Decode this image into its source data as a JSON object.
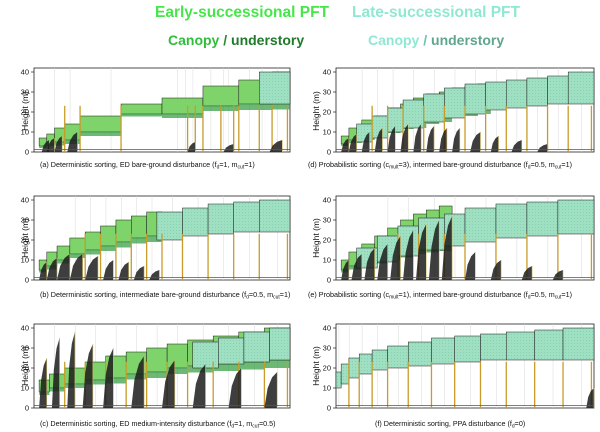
{
  "legend": {
    "early_title": "Early-successional PFT",
    "late_title": "Late-successional PFT",
    "early_canopy": "Canopy",
    "early_sep": " / ",
    "early_understory": "understory",
    "late_canopy": "Canopy",
    "late_sep": " / ",
    "late_understory": "understory",
    "colors": {
      "early_canopy": "#7fd36b",
      "early_understory": "#2e9a3a",
      "late_canopy": "#9fe0c3",
      "late_understory": "#5aa58a",
      "stem": "#c89b2a"
    }
  },
  "ylabel": "Height (m)",
  "chart_data": [
    {
      "id": "a",
      "type": "area",
      "caption": {
        "pre": "(a) Deterministic sorting, ED bare-ground disturbance (f",
        "s1": "d",
        "mid": "=1, m",
        "s2": "cut",
        "post": "=1)"
      },
      "yticks": [
        0,
        10,
        20,
        30,
        40
      ],
      "ylim": [
        0,
        42
      ],
      "xlim": [
        0,
        1
      ],
      "early": [
        [
          0.02,
          0.05,
          3,
          7
        ],
        [
          0.05,
          0.08,
          4,
          9
        ],
        [
          0.08,
          0.12,
          5,
          12
        ],
        [
          0.12,
          0.18,
          6,
          14
        ],
        [
          0.18,
          0.34,
          10,
          18
        ],
        [
          0.34,
          0.5,
          19,
          24
        ],
        [
          0.5,
          0.66,
          19,
          27
        ],
        [
          0.66,
          0.8,
          23,
          33
        ],
        [
          0.8,
          0.93,
          24,
          36
        ],
        [
          0.93,
          1.0,
          25,
          40
        ]
      ],
      "late": [
        [
          0.88,
          1.0,
          24,
          40
        ]
      ],
      "stems": [
        0.12,
        0.18,
        0.34,
        0.6,
        0.63,
        0.66,
        0.73,
        0.78,
        0.8,
        0.88,
        0.93,
        0.99
      ],
      "spikes": [
        [
          0.03,
          0.06,
          6
        ],
        [
          0.05,
          0.08,
          7
        ],
        [
          0.08,
          0.11,
          8
        ],
        [
          0.13,
          0.17,
          10
        ],
        [
          0.6,
          0.63,
          5
        ],
        [
          0.74,
          0.78,
          4
        ],
        [
          0.92,
          0.97,
          6
        ]
      ]
    },
    {
      "id": "d",
      "type": "area",
      "caption": {
        "pre": "(d) Probabilistic sorting (c",
        "s1": "mult",
        "mid": "=3), intermed bare-ground disturbance (f",
        "s2": "d",
        "post": "=0.5, m",
        "s3": "cut",
        "post2": "=1)"
      },
      "yticks": [
        0,
        10,
        20,
        30,
        40
      ],
      "ylim": [
        0,
        42
      ],
      "xlim": [
        0,
        1
      ],
      "early": [
        [
          0.02,
          0.05,
          4,
          8
        ],
        [
          0.05,
          0.1,
          6,
          12
        ],
        [
          0.1,
          0.15,
          8,
          16
        ],
        [
          0.15,
          0.2,
          10,
          18
        ],
        [
          0.2,
          0.25,
          12,
          22
        ],
        [
          0.25,
          0.3,
          14,
          24
        ],
        [
          0.3,
          0.35,
          15,
          27
        ],
        [
          0.35,
          0.4,
          17,
          29
        ],
        [
          0.4,
          0.45,
          18,
          30
        ],
        [
          0.45,
          0.5,
          20,
          32
        ],
        [
          0.5,
          0.55,
          21,
          33
        ],
        [
          0.55,
          0.6,
          22,
          34
        ]
      ],
      "late": [
        [
          0.08,
          0.14,
          5,
          14
        ],
        [
          0.14,
          0.2,
          7,
          18
        ],
        [
          0.2,
          0.26,
          10,
          22
        ],
        [
          0.26,
          0.34,
          12,
          26
        ],
        [
          0.34,
          0.42,
          15,
          29
        ],
        [
          0.42,
          0.5,
          17,
          32
        ],
        [
          0.5,
          0.58,
          19,
          34
        ],
        [
          0.58,
          0.66,
          21,
          35
        ],
        [
          0.66,
          0.74,
          22,
          36
        ],
        [
          0.74,
          0.82,
          23,
          37
        ],
        [
          0.82,
          0.9,
          24,
          38
        ],
        [
          0.9,
          1.0,
          24,
          40
        ]
      ],
      "stems": [
        0.14,
        0.2,
        0.26,
        0.34,
        0.42,
        0.5,
        0.58,
        0.66,
        0.74,
        0.82,
        0.9,
        0.99
      ],
      "spikes": [
        [
          0.02,
          0.05,
          7
        ],
        [
          0.05,
          0.08,
          9
        ],
        [
          0.1,
          0.13,
          10
        ],
        [
          0.15,
          0.18,
          12
        ],
        [
          0.2,
          0.23,
          13
        ],
        [
          0.25,
          0.28,
          14
        ],
        [
          0.3,
          0.33,
          14
        ],
        [
          0.35,
          0.38,
          13
        ],
        [
          0.4,
          0.43,
          12
        ],
        [
          0.45,
          0.48,
          12
        ],
        [
          0.52,
          0.56,
          10
        ],
        [
          0.6,
          0.63,
          8
        ],
        [
          0.68,
          0.72,
          6
        ],
        [
          0.78,
          0.82,
          4
        ]
      ]
    },
    {
      "id": "b",
      "type": "area",
      "caption": {
        "pre": "(b) Deterministic sorting, intermediate bare-ground disturbance (f",
        "s1": "d",
        "mid": "=0.5, m",
        "s2": "cut",
        "post": "=1)"
      },
      "yticks": [
        0,
        10,
        20,
        30,
        40
      ],
      "ylim": [
        0,
        42
      ],
      "xlim": [
        0,
        1
      ],
      "early": [
        [
          0.02,
          0.05,
          5,
          10
        ],
        [
          0.05,
          0.09,
          7,
          14
        ],
        [
          0.09,
          0.14,
          10,
          17
        ],
        [
          0.14,
          0.2,
          13,
          21
        ],
        [
          0.2,
          0.26,
          15,
          24
        ],
        [
          0.26,
          0.32,
          17,
          27
        ],
        [
          0.32,
          0.38,
          19,
          30
        ],
        [
          0.38,
          0.44,
          21,
          32
        ],
        [
          0.44,
          0.5,
          22,
          34
        ]
      ],
      "late": [
        [
          0.48,
          0.58,
          20,
          34
        ],
        [
          0.58,
          0.68,
          22,
          36
        ],
        [
          0.68,
          0.78,
          23,
          38
        ],
        [
          0.78,
          0.88,
          24,
          39
        ],
        [
          0.88,
          1.0,
          24,
          40
        ]
      ],
      "stems": [
        0.2,
        0.26,
        0.32,
        0.38,
        0.44,
        0.5,
        0.58,
        0.68,
        0.78,
        0.88,
        0.99
      ],
      "spikes": [
        [
          0.02,
          0.05,
          9
        ],
        [
          0.05,
          0.09,
          11
        ],
        [
          0.09,
          0.14,
          13
        ],
        [
          0.14,
          0.19,
          13
        ],
        [
          0.2,
          0.25,
          12
        ],
        [
          0.27,
          0.31,
          10
        ],
        [
          0.33,
          0.37,
          9
        ],
        [
          0.39,
          0.43,
          7
        ],
        [
          0.45,
          0.49,
          5
        ]
      ]
    },
    {
      "id": "e",
      "type": "area",
      "caption": {
        "pre": "(e) Probabilistic sorting (c",
        "s1": "mult",
        "mid": "=1), intermed bare-ground disturbance (f",
        "s2": "d",
        "post": "=0.5, m",
        "s3": "cut",
        "post2": "=1)"
      },
      "yticks": [
        0,
        10,
        20,
        30,
        40
      ],
      "ylim": [
        0,
        42
      ],
      "xlim": [
        0,
        1
      ],
      "early": [
        [
          0.02,
          0.05,
          5,
          10
        ],
        [
          0.05,
          0.1,
          7,
          14
        ],
        [
          0.1,
          0.15,
          9,
          18
        ],
        [
          0.15,
          0.2,
          11,
          22
        ],
        [
          0.2,
          0.25,
          13,
          26
        ],
        [
          0.25,
          0.3,
          15,
          30
        ],
        [
          0.3,
          0.35,
          17,
          33
        ],
        [
          0.35,
          0.4,
          18,
          35
        ],
        [
          0.4,
          0.45,
          19,
          37
        ]
      ],
      "late": [
        [
          0.08,
          0.16,
          6,
          16
        ],
        [
          0.16,
          0.24,
          9,
          22
        ],
        [
          0.24,
          0.32,
          12,
          27
        ],
        [
          0.32,
          0.42,
          15,
          31
        ],
        [
          0.42,
          0.5,
          17,
          33
        ],
        [
          0.5,
          0.62,
          19,
          36
        ],
        [
          0.62,
          0.74,
          21,
          38
        ],
        [
          0.74,
          0.86,
          22,
          39
        ],
        [
          0.86,
          1.0,
          23,
          40
        ]
      ],
      "stems": [
        0.24,
        0.32,
        0.42,
        0.5,
        0.62,
        0.74,
        0.86,
        0.99
      ],
      "spikes": [
        [
          0.02,
          0.05,
          10
        ],
        [
          0.06,
          0.1,
          13
        ],
        [
          0.11,
          0.15,
          16
        ],
        [
          0.16,
          0.2,
          18
        ],
        [
          0.21,
          0.25,
          22
        ],
        [
          0.26,
          0.3,
          25
        ],
        [
          0.31,
          0.35,
          28
        ],
        [
          0.36,
          0.4,
          30
        ],
        [
          0.41,
          0.45,
          32
        ],
        [
          0.5,
          0.54,
          14
        ],
        [
          0.6,
          0.64,
          10
        ],
        [
          0.72,
          0.76,
          7
        ],
        [
          0.84,
          0.88,
          5
        ]
      ]
    },
    {
      "id": "c",
      "type": "area",
      "caption": {
        "pre": "(c) Deterministic sorting, ED medium-intensity disturbance (f",
        "s1": "d",
        "mid": "=1, m",
        "s2": "cut",
        "post": "=0.5)"
      },
      "yticks": [
        0,
        10,
        20,
        30,
        40
      ],
      "ylim": [
        0,
        42
      ],
      "xlim": [
        0,
        1
      ],
      "early": [
        [
          0.02,
          0.06,
          8,
          14
        ],
        [
          0.06,
          0.12,
          10,
          17
        ],
        [
          0.12,
          0.2,
          12,
          20
        ],
        [
          0.2,
          0.28,
          14,
          23
        ],
        [
          0.28,
          0.36,
          15,
          26
        ],
        [
          0.36,
          0.44,
          17,
          28
        ],
        [
          0.44,
          0.52,
          18,
          30
        ],
        [
          0.52,
          0.6,
          20,
          32
        ],
        [
          0.6,
          0.7,
          21,
          34
        ],
        [
          0.7,
          0.8,
          22,
          36
        ],
        [
          0.8,
          0.9,
          23,
          38
        ],
        [
          0.9,
          1.0,
          24,
          40
        ]
      ],
      "late": [
        [
          0.62,
          0.72,
          20,
          33
        ],
        [
          0.72,
          0.82,
          22,
          35
        ],
        [
          0.82,
          0.92,
          23,
          38
        ],
        [
          0.92,
          1.0,
          24,
          40
        ]
      ],
      "stems": [
        0.12,
        0.2,
        0.28,
        0.36,
        0.44,
        0.52,
        0.6,
        0.7,
        0.8,
        0.9,
        0.99
      ],
      "spikes": [
        [
          0.02,
          0.05,
          25
        ],
        [
          0.07,
          0.1,
          35
        ],
        [
          0.13,
          0.16,
          38
        ],
        [
          0.19,
          0.23,
          32
        ],
        [
          0.27,
          0.31,
          30
        ],
        [
          0.38,
          0.43,
          26
        ],
        [
          0.5,
          0.55,
          24
        ],
        [
          0.62,
          0.67,
          22
        ],
        [
          0.76,
          0.81,
          20
        ],
        [
          0.9,
          0.95,
          18
        ]
      ]
    },
    {
      "id": "f",
      "type": "area",
      "caption": {
        "pre": "(f) Deterministic sorting, PPA disturbance (f",
        "s1": "d",
        "mid": "=0)",
        "s2": "",
        "post": ""
      },
      "yticks": [
        0,
        10,
        20,
        30,
        40
      ],
      "ylim": [
        0,
        42
      ],
      "xlim": [
        0,
        1
      ],
      "early": [],
      "late": [
        [
          0.0,
          0.02,
          10,
          18
        ],
        [
          0.02,
          0.05,
          12,
          22
        ],
        [
          0.05,
          0.09,
          15,
          25
        ],
        [
          0.09,
          0.14,
          17,
          27
        ],
        [
          0.14,
          0.2,
          19,
          29
        ],
        [
          0.2,
          0.28,
          20,
          31
        ],
        [
          0.28,
          0.37,
          21,
          33
        ],
        [
          0.37,
          0.46,
          22,
          35
        ],
        [
          0.46,
          0.56,
          23,
          36
        ],
        [
          0.56,
          0.66,
          24,
          37
        ],
        [
          0.66,
          0.77,
          24,
          38
        ],
        [
          0.77,
          0.88,
          24,
          39
        ],
        [
          0.88,
          1.0,
          24,
          40
        ]
      ],
      "stems": [
        0.05,
        0.09,
        0.14,
        0.2,
        0.28,
        0.37,
        0.46,
        0.56,
        0.66,
        0.77,
        0.88,
        0.99
      ],
      "spikes": [
        [
          0.97,
          1.0,
          10
        ]
      ]
    }
  ]
}
